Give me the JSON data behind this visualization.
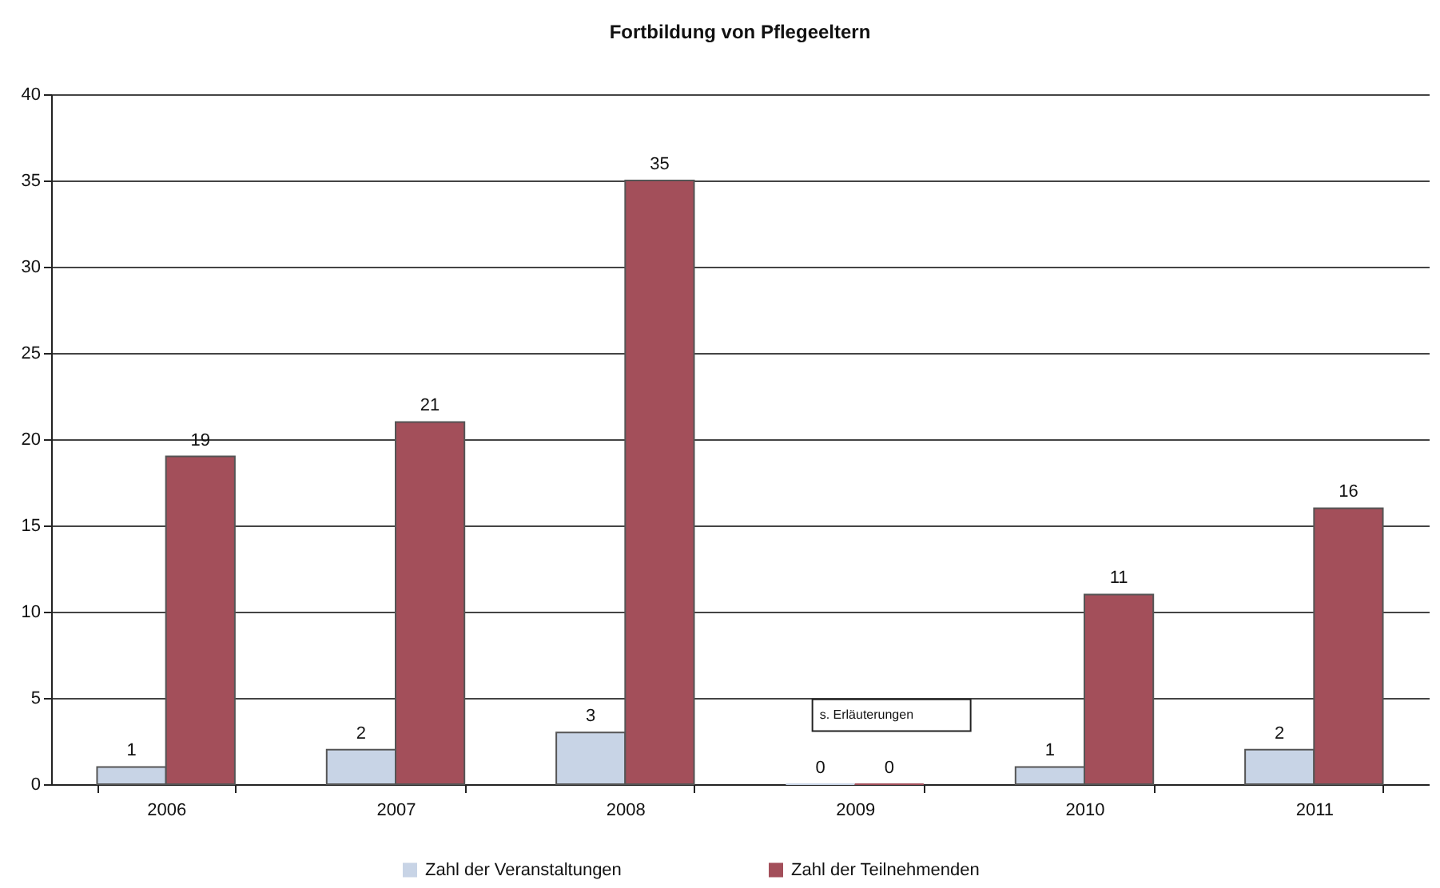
{
  "chart_data": {
    "type": "bar",
    "title": "Fortbildung von Pflegeeltern",
    "categories": [
      "2006",
      "2007",
      "2008",
      "2009",
      "2010",
      "2011"
    ],
    "series": [
      {
        "name": "Zahl der Veranstaltungen",
        "color": "#c8d4e6",
        "values": [
          1,
          2,
          3,
          0,
          1,
          2
        ]
      },
      {
        "name": "Zahl der Teilnehmenden",
        "color": "#a34f5a",
        "values": [
          19,
          21,
          35,
          0,
          11,
          16
        ]
      }
    ],
    "ylim": [
      0,
      40
    ],
    "yticks": [
      0,
      5,
      10,
      15,
      20,
      25,
      30,
      35,
      40
    ],
    "grid": "y",
    "legend": "bottom",
    "data_labels": true,
    "annotations": [
      "s. Erläuterungen"
    ]
  }
}
